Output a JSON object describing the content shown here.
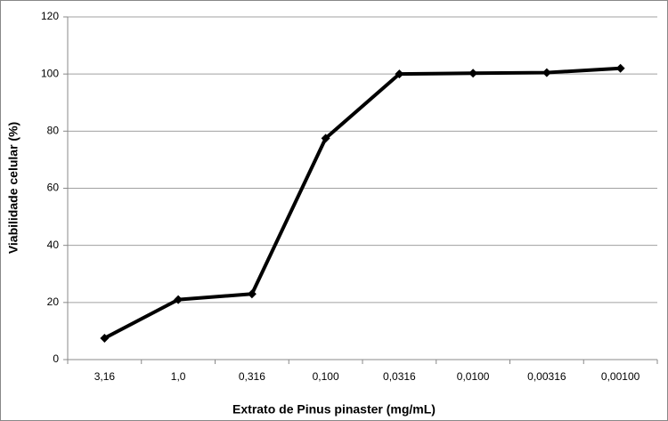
{
  "chart_data": {
    "type": "line",
    "x_label": "Extrato de Pinus pinaster (mg/mL)",
    "y_label": "Viabilidade celular (%)",
    "categories": [
      "3,16",
      "1,0",
      "0,316",
      "0,100",
      "0,0316",
      "0,0100",
      "0,00316",
      "0,00100"
    ],
    "values": [
      7.5,
      21,
      23,
      77.5,
      100,
      100.3,
      100.5,
      102
    ],
    "color": "#000000",
    "ylim": [
      0,
      120
    ],
    "yticks": [
      0,
      20,
      40,
      60,
      80,
      100,
      120
    ],
    "grid": true
  }
}
